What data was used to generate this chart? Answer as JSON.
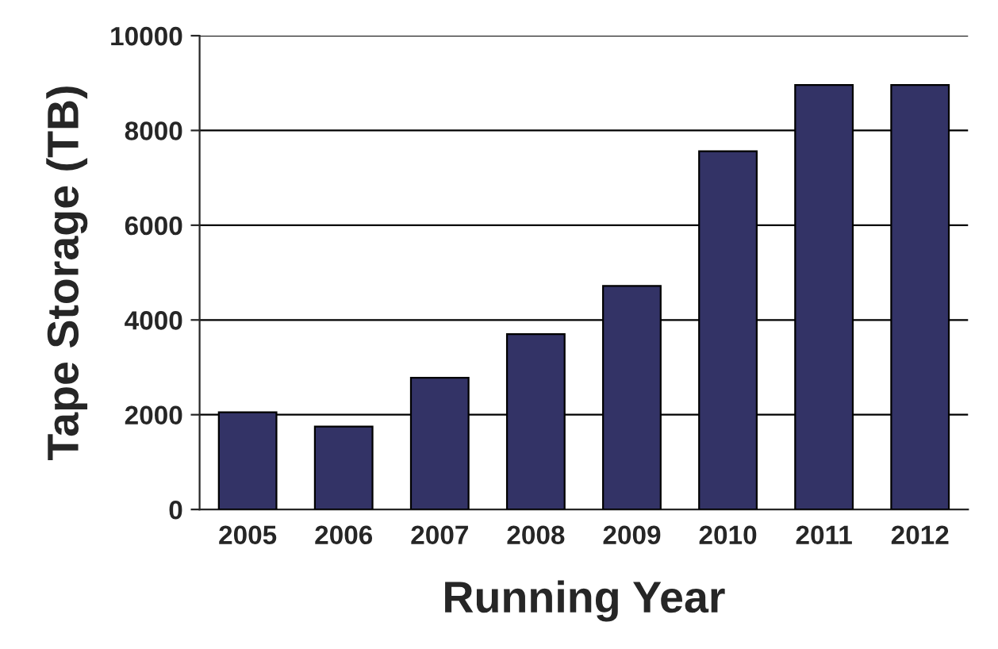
{
  "chart_data": {
    "type": "bar",
    "xlabel": "Running Year",
    "ylabel": "Tape Storage (TB)",
    "categories": [
      "2005",
      "2006",
      "2007",
      "2008",
      "2009",
      "2010",
      "2011",
      "2012"
    ],
    "values": [
      2050,
      1750,
      2780,
      3700,
      4720,
      7560,
      8960,
      8960
    ],
    "color": "#333366",
    "ylim": [
      0,
      10000
    ],
    "yticks": [
      0,
      2000,
      4000,
      6000,
      8000,
      10000
    ],
    "grid": "y",
    "legend": false
  }
}
